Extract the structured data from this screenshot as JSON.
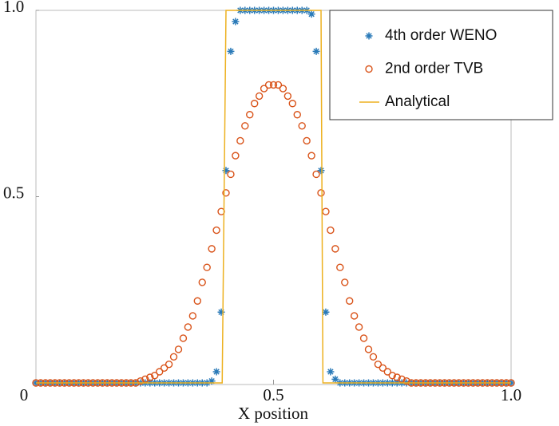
{
  "chart_data": {
    "type": "scatter",
    "xlabel": "X position",
    "xlim": [
      0,
      1
    ],
    "ylim": [
      0,
      1
    ],
    "xticks": [
      0,
      0.5,
      {
        "value": 1,
        "label": "1.0"
      }
    ],
    "yticks": [
      0.5,
      {
        "value": 1,
        "label": "1.0"
      }
    ],
    "legend": "upper right",
    "x": [
      0,
      0.01,
      0.02,
      0.03,
      0.04,
      0.05,
      0.06,
      0.07,
      0.08,
      0.09,
      0.1,
      0.11,
      0.12,
      0.13,
      0.14,
      0.15,
      0.16,
      0.17,
      0.18,
      0.19,
      0.2,
      0.21,
      0.22,
      0.23,
      0.24,
      0.25,
      0.26,
      0.27,
      0.28,
      0.29,
      0.3,
      0.31,
      0.32,
      0.33,
      0.34,
      0.35,
      0.36,
      0.37,
      0.38,
      0.39,
      0.4,
      0.41,
      0.42,
      0.43,
      0.44,
      0.45,
      0.46,
      0.47,
      0.48,
      0.49,
      0.5,
      0.51,
      0.52,
      0.53,
      0.54,
      0.55,
      0.56,
      0.57,
      0.58,
      0.59,
      0.6,
      0.61,
      0.62,
      0.63,
      0.64,
      0.65,
      0.66,
      0.67,
      0.68,
      0.69,
      0.7,
      0.71,
      0.72,
      0.73,
      0.74,
      0.75,
      0.76,
      0.77,
      0.78,
      0.79,
      0.8,
      0.81,
      0.82,
      0.83,
      0.84,
      0.85,
      0.86,
      0.87,
      0.88,
      0.89,
      0.9,
      0.91,
      0.92,
      0.93,
      0.94,
      0.95,
      0.96,
      0.97,
      0.98,
      0.99,
      1
    ],
    "series": [
      {
        "name": "4th order WENO",
        "color": "#2a7ab8",
        "marker": "asterisk",
        "values": [
          0,
          0,
          0,
          0,
          0,
          0,
          0,
          0,
          0,
          0,
          0,
          0,
          0,
          0,
          0,
          0,
          0,
          0,
          0,
          0,
          0,
          0,
          0,
          0,
          0,
          0,
          0,
          0,
          0,
          0,
          0,
          0,
          0,
          0,
          0,
          0,
          0,
          0.005,
          0.03,
          0.19,
          0.57,
          0.89,
          0.97,
          1,
          1,
          1,
          1,
          1,
          1,
          1,
          1,
          1,
          1,
          1,
          1,
          1,
          1,
          1,
          0.99,
          0.89,
          0.57,
          0.19,
          0.03,
          0.01,
          0,
          0,
          0,
          0,
          0,
          0,
          0,
          0,
          0,
          0,
          0,
          0,
          0,
          0,
          0,
          0,
          0,
          0,
          0,
          0,
          0,
          0,
          0,
          0,
          0,
          0,
          0,
          0,
          0,
          0,
          0,
          0,
          0,
          0,
          0,
          0,
          0
        ]
      },
      {
        "name": "2nd order TVB",
        "color": "#d95319",
        "marker": "circle",
        "values": [
          0,
          0,
          0,
          0,
          0,
          0,
          0,
          0,
          0,
          0,
          0,
          0,
          0,
          0,
          0,
          0,
          0,
          0,
          0,
          0,
          0,
          0,
          0.005,
          0.01,
          0.015,
          0.02,
          0.03,
          0.04,
          0.05,
          0.07,
          0.09,
          0.12,
          0.15,
          0.18,
          0.22,
          0.27,
          0.31,
          0.36,
          0.41,
          0.46,
          0.51,
          0.56,
          0.61,
          0.65,
          0.69,
          0.72,
          0.75,
          0.77,
          0.79,
          0.8,
          0.8,
          0.8,
          0.79,
          0.77,
          0.75,
          0.72,
          0.69,
          0.65,
          0.61,
          0.56,
          0.51,
          0.46,
          0.41,
          0.36,
          0.31,
          0.27,
          0.22,
          0.18,
          0.15,
          0.12,
          0.09,
          0.07,
          0.05,
          0.04,
          0.03,
          0.02,
          0.015,
          0.01,
          0.005,
          0,
          0,
          0,
          0,
          0,
          0,
          0,
          0,
          0,
          0,
          0,
          0,
          0,
          0,
          0,
          0,
          0,
          0,
          0,
          0,
          0,
          0
        ]
      },
      {
        "name": "Analytical",
        "color": "#edb120",
        "marker": "line",
        "x": [
          0,
          0.392,
          0.4,
          0.6,
          0.604,
          1
        ],
        "values": [
          0,
          0,
          1,
          1,
          0,
          0
        ]
      }
    ]
  }
}
